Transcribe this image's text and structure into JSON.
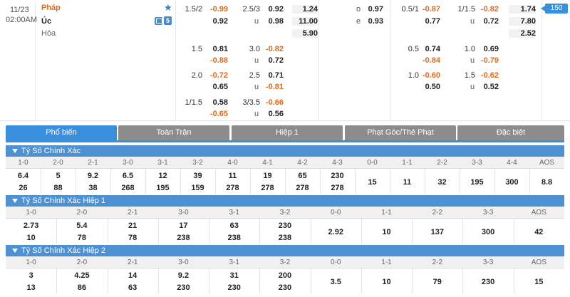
{
  "match": {
    "date": "11/23",
    "time": "02:00AM",
    "home": "Pháp",
    "away": "Úc",
    "draw": "Hòa",
    "stats_badge": "5",
    "more_count": "150"
  },
  "odds_full": {
    "handicap": [
      {
        "line": "1.5/2",
        "home": "-0.99",
        "away": "0.92"
      },
      {
        "line": "1.5",
        "home": "0.81",
        "away": "-0.88"
      },
      {
        "line": "2.0",
        "home": "-0.72",
        "away": "0.65"
      },
      {
        "line": "1/1.5",
        "home": "0.58",
        "away": "-0.65"
      }
    ],
    "over_under": [
      {
        "line": "2.5/3",
        "over": "0.92",
        "under": "0.98",
        "u_label": "u"
      },
      {
        "line": "3.0",
        "over": "-0.82",
        "under": "0.72",
        "u_label": "u"
      },
      {
        "line": "2.5",
        "over": "0.71",
        "under": "-0.81",
        "u_label": "u"
      },
      {
        "line": "3/3.5",
        "over": "-0.66",
        "under": "0.56",
        "u_label": "u"
      }
    ],
    "x12": [
      "1.24",
      "11.00",
      "5.90"
    ],
    "odd_even": [
      {
        "label": "o",
        "value": "0.97"
      },
      {
        "label": "e",
        "value": "0.93"
      }
    ]
  },
  "odds_half": {
    "handicap": [
      {
        "line": "0.5/1",
        "home": "-0.87",
        "away": "0.77"
      },
      {
        "line": "0.5",
        "home": "0.74",
        "away": "-0.84"
      },
      {
        "line": "1.0",
        "home": "-0.60",
        "away": "0.50"
      }
    ],
    "over_under": [
      {
        "line": "1/1.5",
        "over": "-0.82",
        "under": "0.72",
        "u_label": "u"
      },
      {
        "line": "1.0",
        "over": "0.69",
        "under": "-0.79",
        "u_label": "u"
      },
      {
        "line": "1.5",
        "over": "-0.62",
        "under": "0.52",
        "u_label": "u"
      }
    ],
    "x12": [
      "1.74",
      "7.80",
      "2.52"
    ]
  },
  "tabs": [
    "Phổ biến",
    "Toàn Trận",
    "Hiệp 1",
    "Phạt Góc/Thẻ Phạt",
    "Đặc biệt"
  ],
  "section1": {
    "title": "Tỷ Số Chính Xác",
    "headers": [
      "1-0",
      "2-0",
      "2-1",
      "3-0",
      "3-1",
      "3-2",
      "4-0",
      "4-1",
      "4-2",
      "4-3",
      "0-0",
      "1-1",
      "2-2",
      "3-3",
      "4-4",
      "AOS"
    ],
    "top": [
      "6.4",
      "5",
      "9.2",
      "6.5",
      "12",
      "39",
      "11",
      "19",
      "65",
      "230",
      "15",
      "11",
      "32",
      "195",
      "300",
      "8.8"
    ],
    "bottom": [
      "26",
      "88",
      "38",
      "268",
      "195",
      "159",
      "278",
      "278",
      "278",
      "278"
    ]
  },
  "section2": {
    "title": "Tỷ Số Chính Xác Hiệp 1",
    "headers": [
      "1-0",
      "2-0",
      "2-1",
      "3-0",
      "3-1",
      "3-2",
      "0-0",
      "1-1",
      "2-2",
      "3-3",
      "AOS"
    ],
    "top": [
      "2.73",
      "5.4",
      "21",
      "17",
      "63",
      "230",
      "2.92",
      "10",
      "137",
      "300",
      "42"
    ],
    "bottom": [
      "10",
      "78",
      "78",
      "238",
      "238",
      "238"
    ]
  },
  "section3": {
    "title": "Tỷ Số Chính Xác Hiệp 2",
    "headers": [
      "1-0",
      "2-0",
      "2-1",
      "3-0",
      "3-1",
      "3-2",
      "0-0",
      "1-1",
      "2-2",
      "3-3",
      "AOS"
    ],
    "top": [
      "3",
      "4.25",
      "14",
      "9.2",
      "31",
      "200",
      "3.5",
      "10",
      "79",
      "230",
      "15"
    ],
    "bottom": [
      "13",
      "86",
      "63",
      "230",
      "230",
      "230"
    ]
  }
}
